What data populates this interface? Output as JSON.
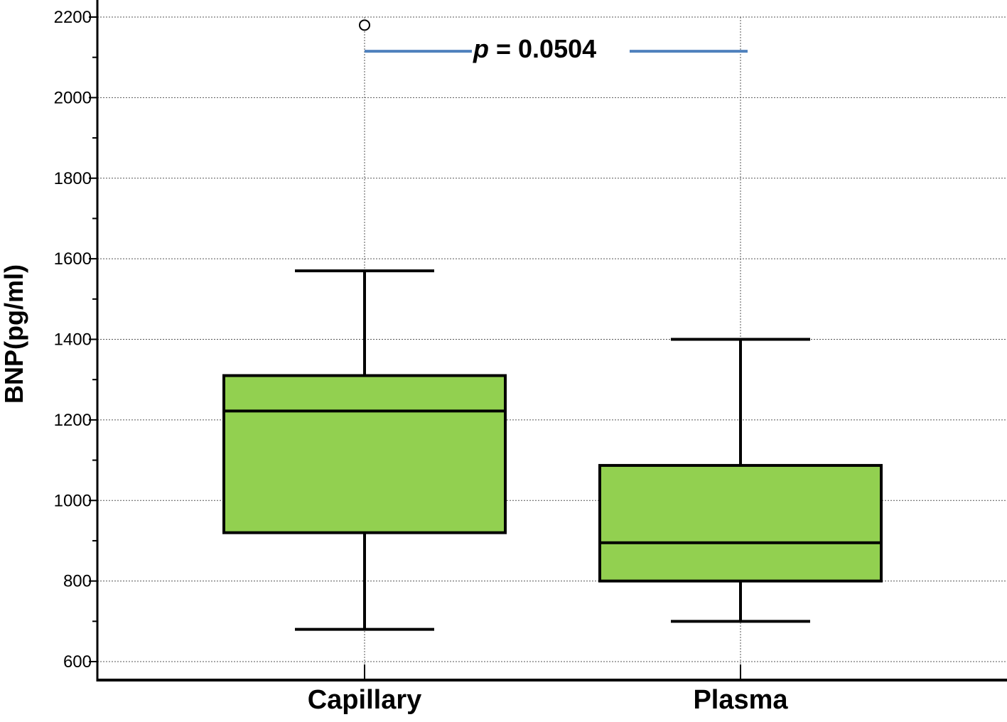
{
  "chart_data": {
    "type": "boxplot",
    "title": "",
    "xlabel": "",
    "ylabel": "BNP(pg/ml)",
    "ylim": [
      560,
      2230
    ],
    "yticks": [
      600,
      800,
      1000,
      1200,
      1400,
      1600,
      1800,
      2000,
      2200
    ],
    "ytick_labels": [
      "600",
      "800",
      "1000",
      "1200",
      "1400",
      "1600",
      "1800",
      "2000",
      "2200"
    ],
    "grid": true,
    "categories": [
      "Capillary",
      "Plasma"
    ],
    "boxes": [
      {
        "category": "Capillary",
        "whisker_low": 680,
        "q1": 920,
        "median": 1222,
        "q3": 1310,
        "whisker_high": 1570,
        "outliers": [
          2180
        ]
      },
      {
        "category": "Plasma",
        "whisker_low": 700,
        "q1": 800,
        "median": 895,
        "q3": 1087,
        "whisker_high": 1400,
        "outliers": []
      }
    ],
    "annotation": {
      "p_symbol": "p",
      "p_rest": " = 0.0504",
      "y": 2115
    },
    "colors": {
      "box_fill": "#92d050",
      "box_stroke": "#000000",
      "bracket": "#4f81bd",
      "grid": "#555555"
    }
  }
}
